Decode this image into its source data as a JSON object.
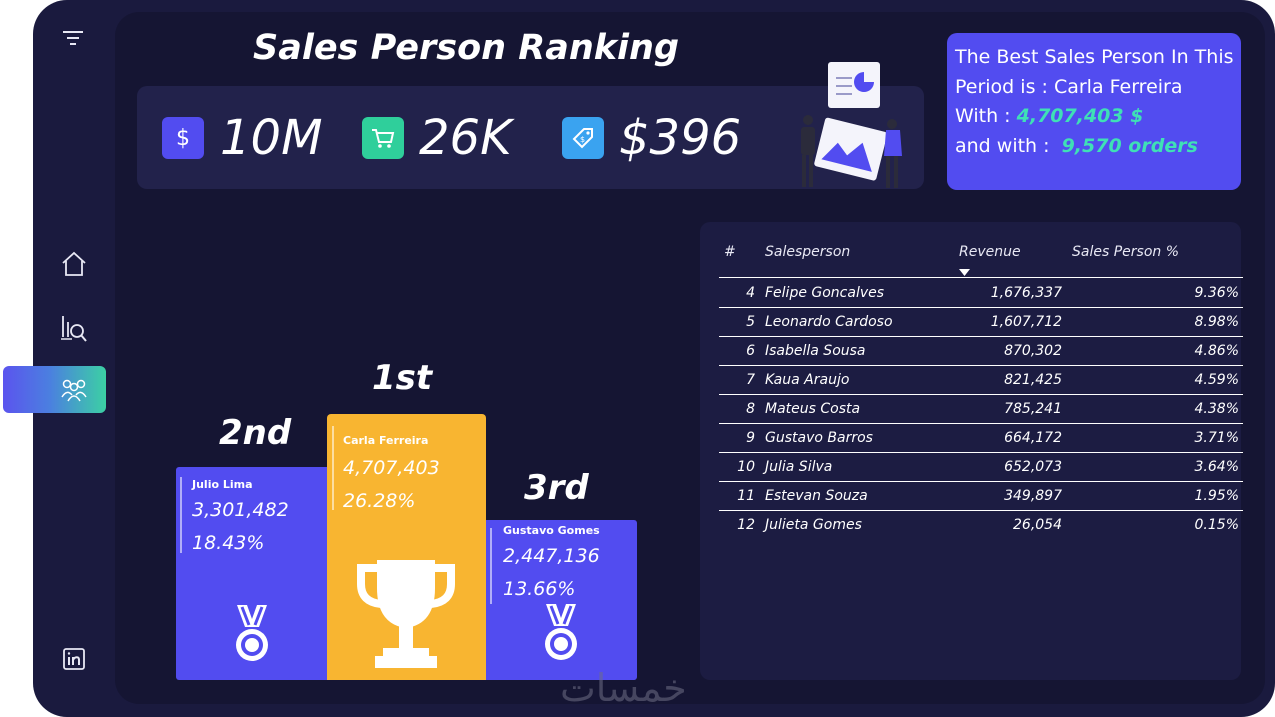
{
  "page": {
    "title": "Sales Person Ranking"
  },
  "sidebar": {
    "items": [
      {
        "icon": "filter-icon"
      },
      {
        "icon": "home-icon"
      },
      {
        "icon": "analytics-icon"
      },
      {
        "icon": "team-icon",
        "active": true
      },
      {
        "icon": "linkedin-icon"
      }
    ]
  },
  "kpis": [
    {
      "icon": "dollar-icon",
      "value": "10M",
      "color": "#524cf0"
    },
    {
      "icon": "cart-icon",
      "value": "26K",
      "color": "#2fcf9b"
    },
    {
      "icon": "price-tag-icon",
      "value": "$396",
      "color": "#3aa3f0"
    }
  ],
  "best": {
    "line1": "The Best Sales Person In This",
    "line2": "Period is : Carla Ferreira",
    "revenue_prefix": "With : ",
    "revenue": "4,707,403 $",
    "orders_prefix": "and with : ",
    "orders": "9,570 orders"
  },
  "podium": {
    "first": {
      "rank": "1st",
      "name": "Carla Ferreira",
      "revenue": "4,707,403",
      "percent": "26.28%",
      "color": "#f8b531",
      "icon": "trophy-icon"
    },
    "second": {
      "rank": "2nd",
      "name": "Julio Lima",
      "revenue": "3,301,482",
      "percent": "18.43%",
      "color": "#524cf0",
      "icon": "medal-icon"
    },
    "third": {
      "rank": "3rd",
      "name": "Gustavo Gomes",
      "revenue": "2,447,136",
      "percent": "13.66%",
      "color": "#524cf0",
      "icon": "medal-icon"
    }
  },
  "table": {
    "headers": {
      "rank": "#",
      "name": "Salesperson",
      "revenue": "Revenue",
      "percent": "Sales Person %"
    },
    "rows": [
      {
        "rank": "4",
        "name": "Felipe Goncalves",
        "revenue": "1,676,337",
        "percent": "9.36%"
      },
      {
        "rank": "5",
        "name": "Leonardo Cardoso",
        "revenue": "1,607,712",
        "percent": "8.98%"
      },
      {
        "rank": "6",
        "name": "Isabella Sousa",
        "revenue": "870,302",
        "percent": "4.86%"
      },
      {
        "rank": "7",
        "name": "Kaua Araujo",
        "revenue": "821,425",
        "percent": "4.59%"
      },
      {
        "rank": "8",
        "name": "Mateus Costa",
        "revenue": "785,241",
        "percent": "4.38%"
      },
      {
        "rank": "9",
        "name": "Gustavo Barros",
        "revenue": "664,172",
        "percent": "3.71%"
      },
      {
        "rank": "10",
        "name": "Julia Silva",
        "revenue": "652,073",
        "percent": "3.64%"
      },
      {
        "rank": "11",
        "name": "Estevan Souza",
        "revenue": "349,897",
        "percent": "1.95%"
      },
      {
        "rank": "12",
        "name": "Julieta Gomes",
        "revenue": "26,054",
        "percent": "0.15%"
      }
    ]
  },
  "watermark": "خمسات"
}
